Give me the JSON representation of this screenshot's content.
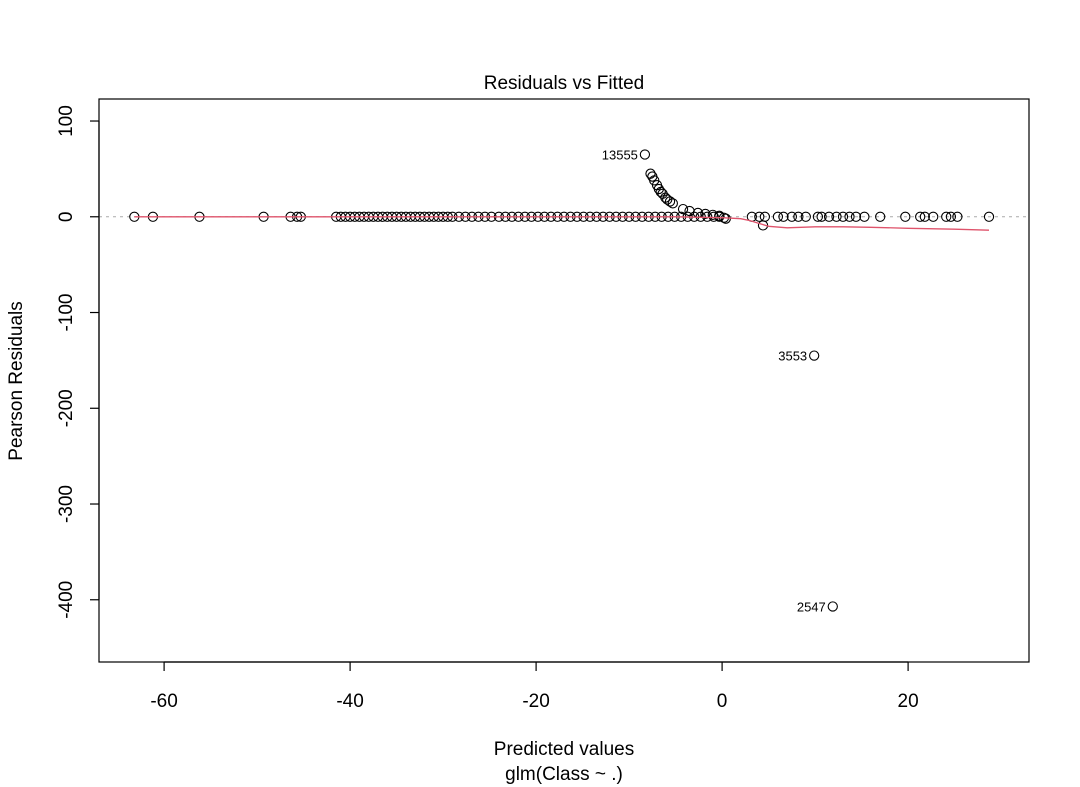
{
  "chart_data": {
    "type": "scatter",
    "title": "Residuals vs Fitted",
    "xlabel": "Predicted values",
    "sublabel": "glm(Class ~ .)",
    "ylabel": "Pearson Residuals",
    "xlim": [
      -67,
      33
    ],
    "ylim": [
      -465,
      123
    ],
    "xticks": [
      -60,
      -40,
      -20,
      0,
      20
    ],
    "yticks": [
      100,
      0,
      -100,
      -200,
      -300,
      -400
    ],
    "grid": false,
    "reference_line": {
      "y": 0,
      "style": "dotted",
      "color": "#aaaaaa"
    },
    "points": [
      {
        "x": -63.2,
        "y": 0
      },
      {
        "x": -61.2,
        "y": 0
      },
      {
        "x": -56.2,
        "y": 0
      },
      {
        "x": -49.3,
        "y": 0
      },
      {
        "x": -46.4,
        "y": 0
      },
      {
        "x": -45.7,
        "y": 0
      },
      {
        "x": -45.3,
        "y": 0
      },
      {
        "x": -41.5,
        "y": 0
      },
      {
        "x": -41.0,
        "y": 0
      },
      {
        "x": -40.5,
        "y": 0
      },
      {
        "x": -40.0,
        "y": 0
      },
      {
        "x": -39.5,
        "y": 0
      },
      {
        "x": -39.0,
        "y": 0
      },
      {
        "x": -38.5,
        "y": 0
      },
      {
        "x": -38.0,
        "y": 0
      },
      {
        "x": -37.5,
        "y": 0
      },
      {
        "x": -37.0,
        "y": 0
      },
      {
        "x": -36.5,
        "y": 0
      },
      {
        "x": -36.0,
        "y": 0
      },
      {
        "x": -35.5,
        "y": 0
      },
      {
        "x": -35.0,
        "y": 0
      },
      {
        "x": -34.5,
        "y": 0
      },
      {
        "x": -34.0,
        "y": 0
      },
      {
        "x": -33.5,
        "y": 0
      },
      {
        "x": -33.0,
        "y": 0
      },
      {
        "x": -32.5,
        "y": 0
      },
      {
        "x": -32.0,
        "y": 0
      },
      {
        "x": -31.5,
        "y": 0
      },
      {
        "x": -31.0,
        "y": 0
      },
      {
        "x": -30.5,
        "y": 0
      },
      {
        "x": -30.0,
        "y": 0
      },
      {
        "x": -29.5,
        "y": 0
      },
      {
        "x": -29.0,
        "y": 0
      },
      {
        "x": -28.3,
        "y": 0
      },
      {
        "x": -27.6,
        "y": 0
      },
      {
        "x": -26.9,
        "y": 0
      },
      {
        "x": -26.2,
        "y": 0
      },
      {
        "x": -25.5,
        "y": 0
      },
      {
        "x": -24.8,
        "y": 0
      },
      {
        "x": -24.0,
        "y": 0
      },
      {
        "x": -23.3,
        "y": 0
      },
      {
        "x": -22.6,
        "y": 0
      },
      {
        "x": -21.9,
        "y": 0
      },
      {
        "x": -21.2,
        "y": 0
      },
      {
        "x": -20.5,
        "y": 0
      },
      {
        "x": -19.8,
        "y": 0
      },
      {
        "x": -19.1,
        "y": 0
      },
      {
        "x": -18.4,
        "y": 0
      },
      {
        "x": -17.7,
        "y": 0
      },
      {
        "x": -17.0,
        "y": 0
      },
      {
        "x": -16.3,
        "y": 0
      },
      {
        "x": -15.6,
        "y": 0
      },
      {
        "x": -14.9,
        "y": 0
      },
      {
        "x": -14.2,
        "y": 0
      },
      {
        "x": -13.5,
        "y": 0
      },
      {
        "x": -12.8,
        "y": 0
      },
      {
        "x": -12.1,
        "y": 0
      },
      {
        "x": -11.4,
        "y": 0
      },
      {
        "x": -10.7,
        "y": 0
      },
      {
        "x": -10.0,
        "y": 0
      },
      {
        "x": -9.3,
        "y": 0
      },
      {
        "x": -8.6,
        "y": 0
      },
      {
        "x": -7.9,
        "y": 0
      },
      {
        "x": -7.2,
        "y": 0
      },
      {
        "x": -6.5,
        "y": 0
      },
      {
        "x": -5.8,
        "y": 0
      },
      {
        "x": -5.1,
        "y": 0
      },
      {
        "x": -4.4,
        "y": 0
      },
      {
        "x": -3.7,
        "y": 0
      },
      {
        "x": -3.0,
        "y": 0
      },
      {
        "x": -2.3,
        "y": 0
      },
      {
        "x": -1.6,
        "y": 0
      },
      {
        "x": -0.9,
        "y": 0
      },
      {
        "x": -0.3,
        "y": 0
      },
      {
        "x": -8.3,
        "y": 65,
        "label": "13555"
      },
      {
        "x": -7.7,
        "y": 45
      },
      {
        "x": -7.5,
        "y": 42
      },
      {
        "x": -7.3,
        "y": 38
      },
      {
        "x": -7.0,
        "y": 33
      },
      {
        "x": -6.8,
        "y": 29
      },
      {
        "x": -6.6,
        "y": 26
      },
      {
        "x": -6.4,
        "y": 24
      },
      {
        "x": -6.1,
        "y": 20
      },
      {
        "x": -5.9,
        "y": 18
      },
      {
        "x": -5.6,
        "y": 16
      },
      {
        "x": -5.3,
        "y": 14
      },
      {
        "x": -4.2,
        "y": 8
      },
      {
        "x": -3.5,
        "y": 6
      },
      {
        "x": -2.6,
        "y": 4
      },
      {
        "x": -1.8,
        "y": 3
      },
      {
        "x": -1.0,
        "y": 2
      },
      {
        "x": -0.3,
        "y": 1
      },
      {
        "x": 0.2,
        "y": -1
      },
      {
        "x": 0.4,
        "y": -2
      },
      {
        "x": 4.4,
        "y": -9
      },
      {
        "x": 3.2,
        "y": 0
      },
      {
        "x": 4.0,
        "y": 0
      },
      {
        "x": 4.6,
        "y": 0
      },
      {
        "x": 6.0,
        "y": 0
      },
      {
        "x": 6.6,
        "y": 0
      },
      {
        "x": 7.5,
        "y": 0
      },
      {
        "x": 8.2,
        "y": 0
      },
      {
        "x": 9.0,
        "y": 0
      },
      {
        "x": 10.3,
        "y": 0
      },
      {
        "x": 10.7,
        "y": 0
      },
      {
        "x": 11.5,
        "y": 0
      },
      {
        "x": 12.3,
        "y": 0
      },
      {
        "x": 13.0,
        "y": 0
      },
      {
        "x": 13.7,
        "y": 0
      },
      {
        "x": 14.4,
        "y": 0
      },
      {
        "x": 15.3,
        "y": 0
      },
      {
        "x": 17.0,
        "y": 0
      },
      {
        "x": 19.7,
        "y": 0
      },
      {
        "x": 21.3,
        "y": 0
      },
      {
        "x": 21.8,
        "y": 0
      },
      {
        "x": 22.7,
        "y": 0
      },
      {
        "x": 24.1,
        "y": 0
      },
      {
        "x": 24.6,
        "y": 0
      },
      {
        "x": 25.3,
        "y": 0
      },
      {
        "x": 28.7,
        "y": 0
      },
      {
        "x": 9.9,
        "y": -145,
        "label": "3553"
      },
      {
        "x": 11.9,
        "y": -407,
        "label": "2547"
      }
    ],
    "smooth_line": {
      "color": "#df536b",
      "x": [
        -63.2,
        -40,
        -20,
        -5,
        0,
        2,
        3,
        4,
        5,
        7,
        10,
        13,
        16,
        20,
        25,
        28.7
      ],
      "y": [
        0,
        0,
        0,
        0,
        -1,
        -2,
        -4,
        -7,
        -10,
        -11.5,
        -10.5,
        -10.5,
        -11,
        -12,
        -13,
        -14
      ]
    }
  }
}
